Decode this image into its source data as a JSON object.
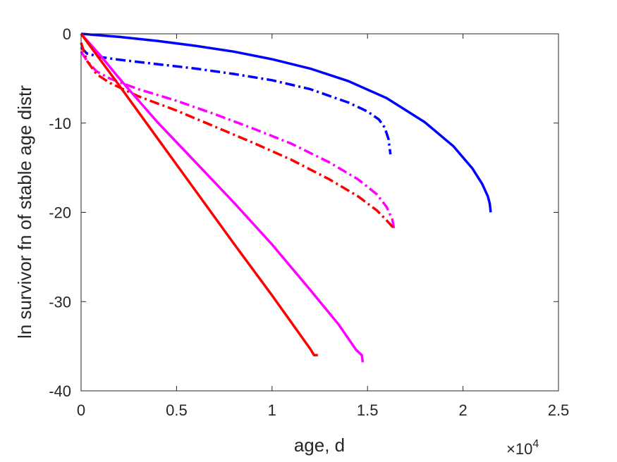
{
  "chart_data": {
    "type": "line",
    "title": "",
    "xlabel": "age, d",
    "ylabel": "ln survivor fn of stable age distr",
    "x_exponent_label": "×10",
    "x_exponent_power": "4",
    "xlim": [
      0,
      25000
    ],
    "ylim": [
      -40,
      0
    ],
    "x_ticks": [
      0,
      5000,
      10000,
      15000,
      20000,
      25000
    ],
    "x_tick_labels": [
      "0",
      "0.5",
      "1",
      "1.5",
      "2",
      "2.5"
    ],
    "y_ticks": [
      0,
      -10,
      -20,
      -30,
      -40
    ],
    "y_tick_labels": [
      "0",
      "-10",
      "-20",
      "-30",
      "-40"
    ],
    "grid": false,
    "colors": {
      "blue": "#0000ff",
      "magenta": "#ff00ff",
      "red": "#ff0000",
      "axis": "#262626"
    },
    "series": [
      {
        "color": "#0000ff",
        "style": "solid",
        "x": [
          0,
          2000,
          4000,
          6000,
          8000,
          10000,
          12000,
          14000,
          16000,
          18000,
          19500,
          20500,
          21000,
          21300,
          21400,
          21450
        ],
        "y": [
          0,
          -0.35,
          -0.8,
          -1.35,
          -2.0,
          -2.85,
          -3.9,
          -5.3,
          -7.2,
          -9.9,
          -12.6,
          -15.1,
          -16.8,
          -18.2,
          -19.0,
          -20.0
        ]
      },
      {
        "color": "#0000ff",
        "style": "dashdot",
        "x": [
          0,
          300,
          1000,
          2000,
          4000,
          6000,
          8000,
          10000,
          12000,
          14000,
          15000,
          15600,
          15900,
          16100,
          16200
        ],
        "y": [
          -1.5,
          -2.2,
          -2.6,
          -2.9,
          -3.4,
          -3.9,
          -4.5,
          -5.2,
          -6.2,
          -7.7,
          -8.7,
          -9.6,
          -10.5,
          -11.8,
          -13.5
        ]
      },
      {
        "color": "#ff00ff",
        "style": "dashdot",
        "x": [
          0,
          300,
          800,
          1500,
          3000,
          5000,
          7000,
          9000,
          11000,
          13000,
          14500,
          15500,
          16000,
          16300,
          16400
        ],
        "y": [
          -2.0,
          -3.0,
          -4.2,
          -5.0,
          -6.2,
          -7.5,
          -9.0,
          -10.6,
          -12.3,
          -14.4,
          -16.3,
          -18.0,
          -19.4,
          -20.8,
          -22.0
        ]
      },
      {
        "color": "#ff0000",
        "style": "dashdot",
        "x": [
          0,
          300,
          800,
          1500,
          3000,
          5000,
          7000,
          9000,
          11000,
          13000,
          14500,
          15500,
          16000,
          16300,
          16400
        ],
        "y": [
          -1.0,
          -3.0,
          -4.5,
          -5.5,
          -7.0,
          -8.6,
          -10.4,
          -12.2,
          -14.1,
          -16.3,
          -18.2,
          -19.8,
          -20.9,
          -21.6,
          -22.0
        ]
      },
      {
        "color": "#ff00ff",
        "style": "solid",
        "x": [
          0,
          1000,
          2000,
          4000,
          6000,
          8000,
          10000,
          12000,
          13500,
          14400,
          14700,
          14750
        ],
        "y": [
          0,
          -2.4,
          -5.0,
          -9.9,
          -14.4,
          -18.9,
          -23.6,
          -28.7,
          -32.6,
          -35.4,
          -36.0,
          -36.8
        ]
      },
      {
        "color": "#ff0000",
        "style": "solid",
        "x": [
          0,
          2000,
          4000,
          6000,
          8000,
          10000,
          11500,
          12000,
          12200,
          12400
        ],
        "y": [
          0,
          -5.8,
          -11.7,
          -17.6,
          -23.5,
          -29.3,
          -33.8,
          -35.3,
          -36.0,
          -36.0
        ]
      }
    ]
  }
}
